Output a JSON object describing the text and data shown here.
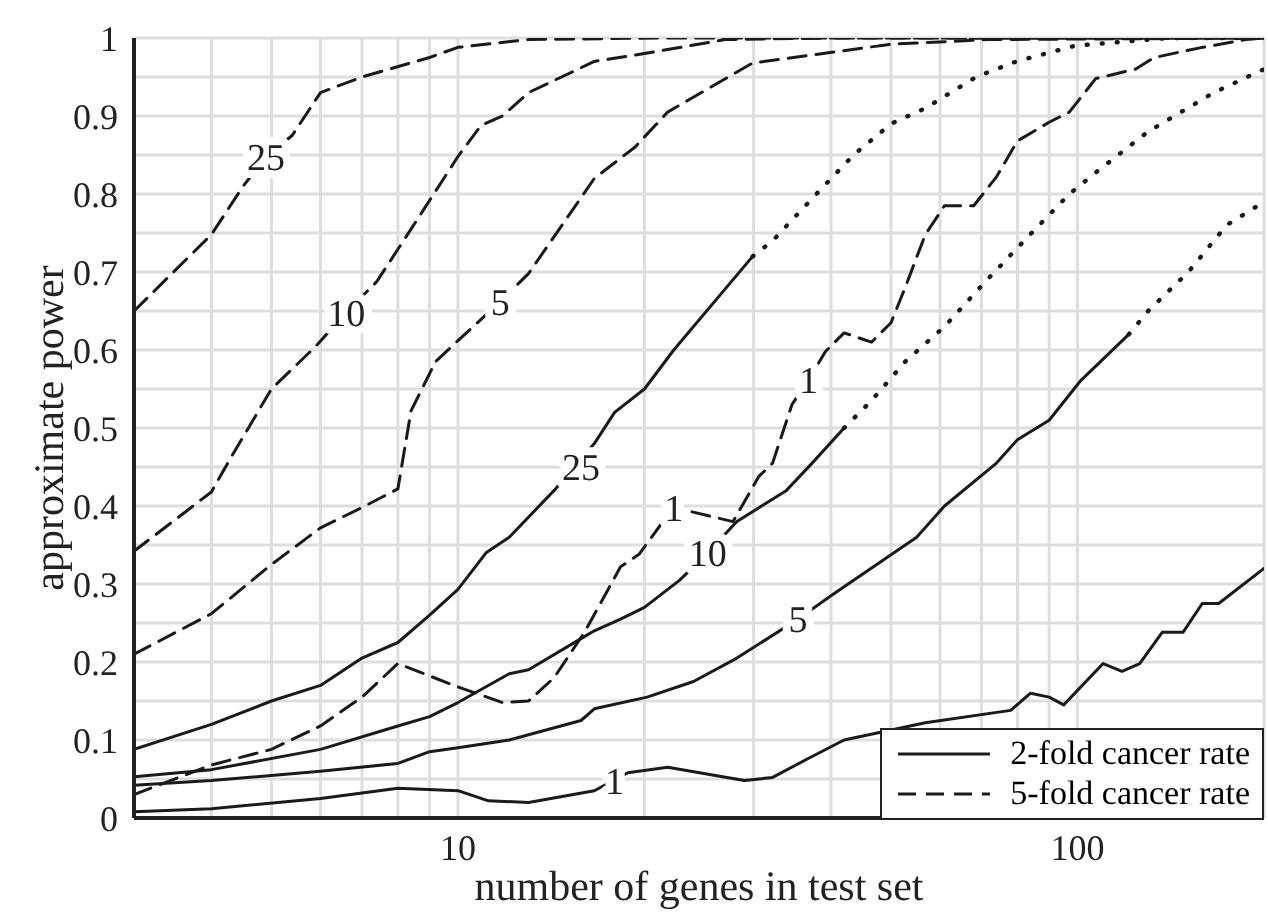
{
  "chart_data": {
    "type": "line",
    "xlabel": "number of genes in test set",
    "ylabel": "approximate power",
    "log": "x",
    "xlim": [
      3,
      200
    ],
    "ylim": [
      0,
      1
    ],
    "xticks": [
      {
        "value": 3,
        "label": null
      },
      {
        "value": 4,
        "label": null
      },
      {
        "value": 5,
        "label": null
      },
      {
        "value": 6,
        "label": null
      },
      {
        "value": 7,
        "label": null
      },
      {
        "value": 8,
        "label": null
      },
      {
        "value": 9,
        "label": null
      },
      10,
      {
        "value": 20,
        "label": null
      },
      {
        "value": 30,
        "label": null
      },
      {
        "value": 40,
        "label": null
      },
      {
        "value": 50,
        "label": null
      },
      {
        "value": 60,
        "label": null
      },
      {
        "value": 70,
        "label": null
      },
      {
        "value": 80,
        "label": null
      },
      {
        "value": 90,
        "label": null
      },
      100,
      {
        "value": 200,
        "label": null
      }
    ],
    "yticks": [
      0,
      {
        "value": 0.05,
        "label": null
      },
      0.1,
      {
        "value": 0.15,
        "label": null
      },
      0.2,
      {
        "value": 0.25,
        "label": null
      },
      0.3,
      {
        "value": 0.35,
        "label": null
      },
      0.4,
      {
        "value": 0.45,
        "label": null
      },
      0.5,
      {
        "value": 0.55,
        "label": null
      },
      0.6,
      {
        "value": 0.65,
        "label": null
      },
      0.7,
      {
        "value": 0.75,
        "label": null
      },
      0.8,
      {
        "value": 0.85,
        "label": null
      },
      0.9,
      {
        "value": 0.95,
        "label": null
      },
      1
    ],
    "grid": true,
    "legend": "bottom right",
    "marker": "none",
    "series": [
      {
        "name": "2-fold cancer rate",
        "color": "#1a1a1a",
        "line_style": "solid",
        "x": [
          3,
          4,
          5,
          6,
          7,
          8,
          9,
          10,
          11.1,
          12.1,
          14.3,
          16.6,
          17.9,
          20,
          22.3,
          29.9
        ],
        "values": [
          0.088,
          0.12,
          0.15,
          0.17,
          0.205,
          0.225,
          0.26,
          0.293,
          0.34,
          0.36,
          0.42,
          0.48,
          0.52,
          0.55,
          0.6,
          0.72
        ]
      },
      {
        "color": "#1a1a1a",
        "line_style": "dotted",
        "x": [
          29.9,
          32.2,
          37.9,
          43.5,
          50,
          56.8,
          68.6,
          79.7,
          99,
          140,
          200
        ],
        "values": [
          0.72,
          0.74,
          0.8,
          0.85,
          0.89,
          0.91,
          0.95,
          0.97,
          0.99,
          1,
          1
        ]
      },
      {
        "color": "#1a1a1a",
        "line_style": "solid",
        "x": [
          3,
          4,
          6,
          8,
          9,
          10,
          12.1,
          13,
          15.8,
          16.6,
          18.3,
          20,
          22.8,
          25.3,
          28.2,
          33.9,
          37.3,
          42
        ],
        "values": [
          0.053,
          0.062,
          0.088,
          0.118,
          0.13,
          0.148,
          0.185,
          0.19,
          0.23,
          0.24,
          0.255,
          0.27,
          0.305,
          0.34,
          0.38,
          0.42,
          0.455,
          0.5
        ]
      },
      {
        "color": "#1a1a1a",
        "line_style": "dotted",
        "x": [
          42,
          46.5,
          52.7,
          61,
          70.5,
          82,
          97,
          108,
          130,
          166,
          200
        ],
        "values": [
          0.5,
          0.535,
          0.585,
          0.63,
          0.685,
          0.74,
          0.8,
          0.83,
          0.88,
          0.93,
          0.96
        ]
      },
      {
        "color": "#1a1a1a",
        "line_style": "solid",
        "x": [
          3,
          4,
          6,
          8,
          9,
          10,
          12.1,
          15.8,
          16.6,
          20.2,
          24,
          28.2,
          35.4,
          40,
          55,
          61,
          74,
          80,
          90,
          101,
          121
        ],
        "values": [
          0.042,
          0.048,
          0.06,
          0.07,
          0.085,
          0.09,
          0.1,
          0.125,
          0.14,
          0.155,
          0.175,
          0.205,
          0.255,
          0.285,
          0.36,
          0.4,
          0.455,
          0.485,
          0.51,
          0.56,
          0.62
        ]
      },
      {
        "color": "#1a1a1a",
        "line_style": "dotted",
        "x": [
          121,
          130,
          151,
          174,
          200
        ],
        "values": [
          0.62,
          0.65,
          0.7,
          0.76,
          0.79
        ]
      },
      {
        "color": "#1a1a1a",
        "line_style": "solid",
        "x": [
          3,
          4,
          6,
          8,
          10,
          11.2,
          13,
          16.6,
          18.8,
          21.8,
          29,
          32.2,
          36.5,
          42,
          56.8,
          78,
          84,
          90,
          95,
          110,
          118,
          126,
          137,
          148,
          159,
          169,
          200
        ],
        "values": [
          0.008,
          0.012,
          0.025,
          0.038,
          0.035,
          0.022,
          0.02,
          0.035,
          0.058,
          0.065,
          0.048,
          0.052,
          0.075,
          0.1,
          0.122,
          0.138,
          0.16,
          0.155,
          0.145,
          0.198,
          0.188,
          0.198,
          0.238,
          0.238,
          0.275,
          0.275,
          0.32
        ]
      },
      {
        "name": "5-fold cancer rate",
        "color": "#1a1a1a",
        "line_style": "dashed",
        "x": [
          3,
          4,
          4.5,
          4.9,
          5.4,
          6,
          7,
          9,
          10,
          13,
          21.2,
          200
        ],
        "values": [
          0.65,
          0.748,
          0.81,
          0.848,
          0.875,
          0.93,
          0.95,
          0.975,
          0.988,
          0.998,
          1,
          1
        ]
      },
      {
        "color": "#1a1a1a",
        "line_style": "dashed",
        "x": [
          3,
          4,
          4.3,
          5,
          5.9,
          6.6,
          7.4,
          8.4,
          10,
          10.9,
          11.8,
          13,
          16.6,
          20,
          27,
          40,
          200
        ],
        "values": [
          0.342,
          0.418,
          0.462,
          0.55,
          0.605,
          0.648,
          0.688,
          0.755,
          0.848,
          0.888,
          0.9,
          0.93,
          0.97,
          0.98,
          0.998,
          1,
          1
        ]
      },
      {
        "color": "#1a1a1a",
        "line_style": "dashed",
        "x": [
          3,
          4,
          5,
          6,
          7,
          8,
          8.4,
          9.2,
          10,
          11.7,
          13,
          16.6,
          19.3,
          21.8,
          29.9,
          50,
          72,
          200
        ],
        "values": [
          0.21,
          0.262,
          0.325,
          0.372,
          0.398,
          0.422,
          0.522,
          0.585,
          0.612,
          0.662,
          0.698,
          0.82,
          0.86,
          0.905,
          0.968,
          0.992,
          0.998,
          1
        ]
      },
      {
        "color": "#1a1a1a",
        "line_style": "dashed",
        "x": [
          3,
          4,
          5,
          6,
          7,
          8,
          10,
          11.8,
          13,
          14.3,
          16,
          18.3,
          19.6,
          21.2,
          22.3,
          27.8,
          30.6,
          32.2,
          34.6,
          36.8,
          39.2,
          42,
          46.5,
          50,
          52.7,
          56.8,
          61,
          68,
          74,
          80,
          90,
          97,
          107,
          124,
          133,
          159,
          187,
          200
        ],
        "values": [
          0.03,
          0.068,
          0.088,
          0.118,
          0.155,
          0.198,
          0.168,
          0.148,
          0.15,
          0.18,
          0.238,
          0.322,
          0.338,
          0.375,
          0.398,
          0.38,
          0.438,
          0.455,
          0.53,
          0.562,
          0.598,
          0.622,
          0.61,
          0.635,
          0.68,
          0.748,
          0.785,
          0.785,
          0.822,
          0.868,
          0.892,
          0.905,
          0.948,
          0.96,
          0.975,
          0.988,
          0.998,
          1
        ]
      }
    ],
    "annotations": [
      {
        "text": "25",
        "x": 15.8,
        "y": 0.45
      },
      {
        "text": "10",
        "x": 25.3,
        "y": 0.34
      },
      {
        "text": "5",
        "x": 35.4,
        "y": 0.255
      },
      {
        "text": "1",
        "x": 17.9,
        "y": 0.048
      },
      {
        "text": "25",
        "x": 4.9,
        "y": 0.848
      },
      {
        "text": "10",
        "x": 6.6,
        "y": 0.648
      },
      {
        "text": "5",
        "x": 11.7,
        "y": 0.662
      },
      {
        "text": "1",
        "x": 22.3,
        "y": 0.398
      },
      {
        "text": "1",
        "x": 36.8,
        "y": 0.562
      }
    ]
  }
}
